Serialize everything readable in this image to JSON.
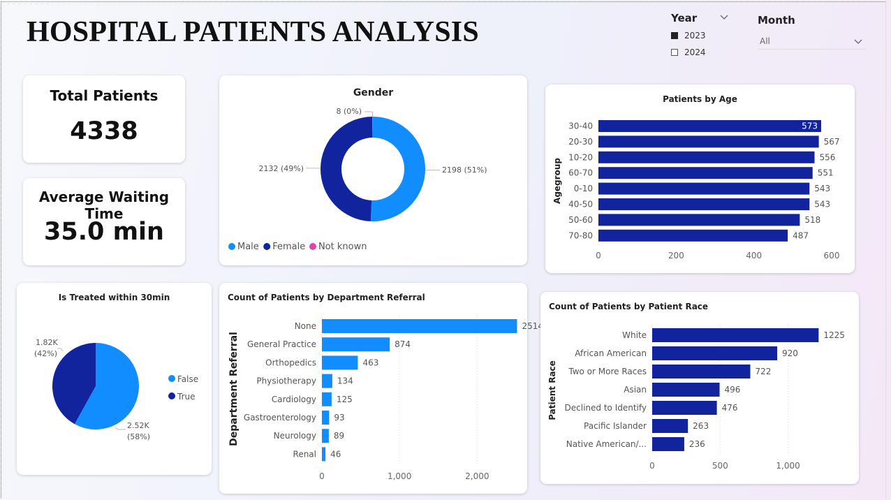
{
  "page_title": "HOSPITAL PATIENTS ANALYSIS",
  "filters": {
    "year": {
      "title": "Year",
      "options": [
        {
          "label": "2023",
          "checked": true
        },
        {
          "label": "2024",
          "checked": false
        }
      ]
    },
    "month": {
      "title": "Month",
      "selected": "All"
    }
  },
  "kpis": {
    "total_patients": {
      "label": "Total Patients",
      "value": "4338"
    },
    "avg_wait": {
      "label": "Average Waiting Time",
      "value": "35.0 min"
    }
  },
  "colors": {
    "light_blue": "#118dff",
    "dark_blue": "#12239e",
    "pink": "#e044a7",
    "grid": "#d8d8d8"
  },
  "chart_data": [
    {
      "id": "gender",
      "type": "pie",
      "title": "Gender",
      "categories": [
        "Male",
        "Female",
        "Not known"
      ],
      "values": [
        2198,
        2132,
        8
      ],
      "data_labels": [
        "2198 (51%)",
        "2132 (49%)",
        "8 (0%)"
      ],
      "legend": [
        "Male",
        "Female",
        "Not known"
      ],
      "legend_position": "bottom-left",
      "donut": true
    },
    {
      "id": "age",
      "type": "bar",
      "orientation": "horizontal",
      "title": "Patients by Age",
      "ylabel": "Agegroup",
      "xlabel": "",
      "categories": [
        "30-40",
        "20-30",
        "10-20",
        "60-70",
        "0-10",
        "40-50",
        "50-60",
        "70-80"
      ],
      "values": [
        573,
        567,
        556,
        551,
        543,
        543,
        518,
        487
      ],
      "xlim": [
        0,
        600
      ],
      "xticks": [
        "0",
        "200",
        "400",
        "600"
      ],
      "grid": false
    },
    {
      "id": "treated",
      "type": "pie",
      "title": "Is Treated within 30min",
      "categories": [
        "False",
        "True"
      ],
      "values": [
        2520,
        1820
      ],
      "data_labels": [
        [
          "2.52K",
          "(58%)"
        ],
        [
          "1.82K",
          "(42%)"
        ]
      ],
      "legend": [
        "False",
        "True"
      ],
      "legend_position": "right"
    },
    {
      "id": "department",
      "type": "bar",
      "orientation": "horizontal",
      "title": "Count of Patients by Department Referral",
      "ylabel": "Department Referral",
      "xlabel": "",
      "categories": [
        "None",
        "General Practice",
        "Orthopedics",
        "Physiotherapy",
        "Cardiology",
        "Gastroenterology",
        "Neurology",
        "Renal"
      ],
      "values": [
        2514,
        874,
        463,
        134,
        125,
        93,
        89,
        46
      ],
      "xlim": [
        0,
        2600
      ],
      "xticks": [
        "0",
        "1,000",
        "2,000"
      ],
      "grid": true
    },
    {
      "id": "race",
      "type": "bar",
      "orientation": "horizontal",
      "title": "Count of Patients by Patient Race",
      "ylabel": "Patient Race",
      "xlabel": "",
      "categories": [
        "White",
        "African American",
        "Two or More Races",
        "Asian",
        "Declined to Identify",
        "Pacific Islander",
        "Native American/..."
      ],
      "values": [
        1225,
        920,
        722,
        496,
        476,
        263,
        236
      ],
      "xlim": [
        0,
        1290
      ],
      "xticks": [
        "0",
        "500",
        "1,000"
      ],
      "grid": true
    }
  ]
}
